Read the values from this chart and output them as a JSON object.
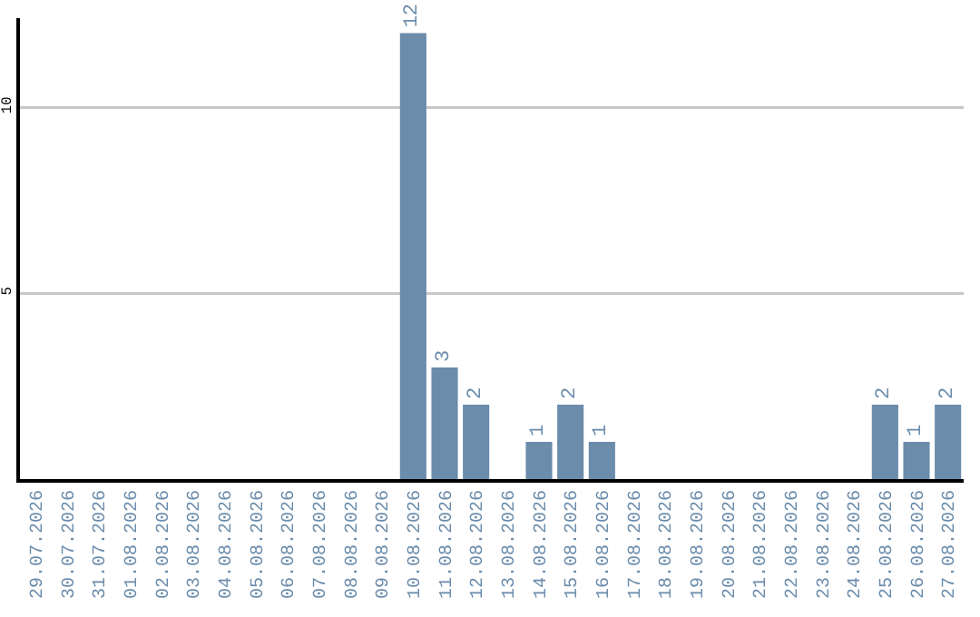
{
  "chart_data": {
    "type": "bar",
    "categories": [
      "29.07.2026",
      "30.07.2026",
      "31.07.2026",
      "01.08.2026",
      "02.08.2026",
      "03.08.2026",
      "04.08.2026",
      "05.08.2026",
      "06.08.2026",
      "07.08.2026",
      "08.08.2026",
      "09.08.2026",
      "10.08.2026",
      "11.08.2026",
      "12.08.2026",
      "13.08.2026",
      "14.08.2026",
      "15.08.2026",
      "16.08.2026",
      "17.08.2026",
      "18.08.2026",
      "19.08.2026",
      "20.08.2026",
      "21.08.2026",
      "22.08.2026",
      "23.08.2026",
      "24.08.2026",
      "25.08.2026",
      "26.08.2026",
      "27.08.2026"
    ],
    "values": [
      0,
      0,
      0,
      0,
      0,
      0,
      0,
      0,
      0,
      0,
      0,
      0,
      12,
      3,
      2,
      0,
      1,
      2,
      1,
      0,
      0,
      0,
      0,
      0,
      0,
      0,
      0,
      2,
      1,
      2
    ],
    "value_labels": [
      null,
      null,
      null,
      null,
      null,
      null,
      null,
      null,
      null,
      null,
      null,
      null,
      "12",
      "3",
      "2",
      null,
      "1",
      "2",
      "1",
      null,
      null,
      null,
      null,
      null,
      null,
      null,
      null,
      "2",
      "1",
      "2"
    ],
    "color": "#6b8cab",
    "ylim": [
      0,
      12.4
    ],
    "yticks": [
      5,
      10
    ],
    "grid": "y"
  }
}
